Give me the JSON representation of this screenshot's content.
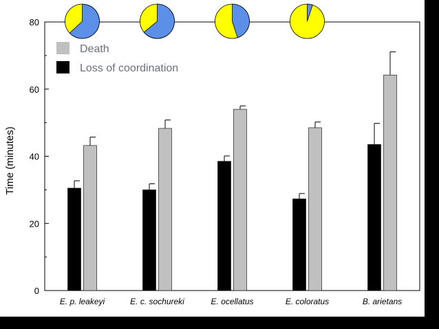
{
  "chart_data": {
    "type": "bar",
    "title": "",
    "xlabel": "",
    "ylabel": "Time (minutes)",
    "ylim": [
      0,
      80
    ],
    "yticks": [
      0,
      20,
      40,
      60,
      80
    ],
    "categories": [
      "E. p. leakeyi",
      "E. c. sochureki",
      "E. ocellatus",
      "E. coloratus",
      "B. arietans"
    ],
    "series": [
      {
        "name": "Loss of coordination",
        "color": "#000000",
        "values": [
          30.5,
          30.0,
          38.5,
          27.3,
          43.5
        ],
        "errors": [
          2.2,
          1.8,
          1.6,
          1.6,
          6.3
        ]
      },
      {
        "name": "Death",
        "color": "#c0c0c0",
        "values": [
          43.2,
          48.3,
          54.0,
          48.5,
          64.2
        ],
        "errors": [
          2.5,
          2.5,
          1.0,
          1.7,
          6.9
        ]
      }
    ],
    "legend": {
      "position": "top-left",
      "entries": [
        "Death",
        "Loss of coordination"
      ],
      "colors": [
        "#c0c0c0",
        "#000000"
      ]
    },
    "pie_charts": [
      {
        "category": "E. p. leakeyi",
        "blue_fraction": 0.63,
        "yellow_fraction": 0.37
      },
      {
        "category": "E. c. sochureki",
        "blue_fraction": 0.64,
        "yellow_fraction": 0.36
      },
      {
        "category": "E. ocellatus",
        "blue_fraction": 0.45,
        "yellow_fraction": 0.55
      },
      {
        "category": "E. coloratus",
        "blue_fraction": 0.05,
        "yellow_fraction": 0.95
      }
    ],
    "pie_colors": {
      "blue": "#5b8fe8",
      "yellow": "#ffff00"
    }
  }
}
